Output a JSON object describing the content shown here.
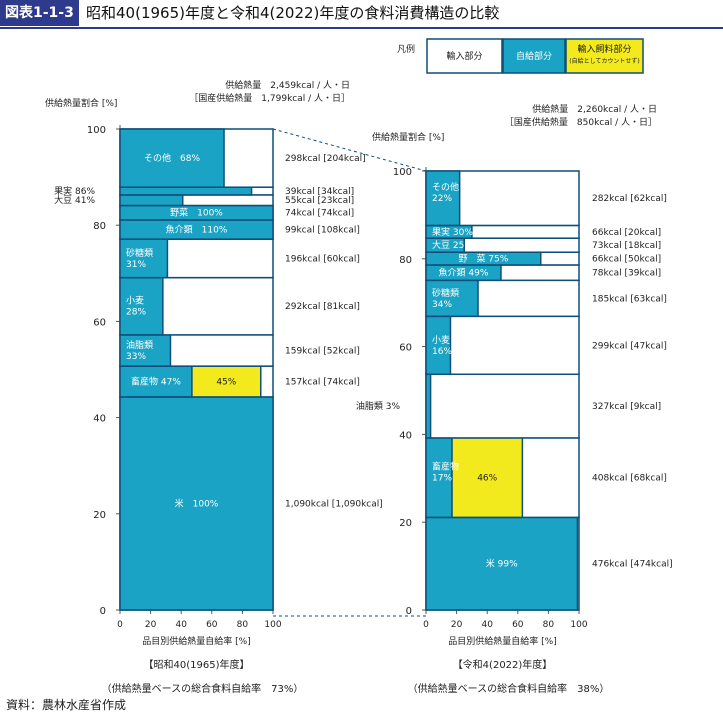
{
  "figure_label": "図表1-1-3",
  "figure_title": "昭和40(1965)年度と令和4(2022)年度の食料消費構造の比較",
  "legend": {
    "title": "凡例",
    "items": [
      {
        "label": "輸入部分",
        "color": "#ffffff"
      },
      {
        "label": "自給部分",
        "color": "#1aa3c4"
      },
      {
        "label": "輸入飼料部分",
        "sub": "(自給としてカウントせず)",
        "color": "#f3ea1d"
      }
    ]
  },
  "colors": {
    "self": "#1aa3c4",
    "import": "#ffffff",
    "feed": "#f3ea1d",
    "border": "#0d4f79"
  },
  "source": "資料：農林水産省作成",
  "chart_data": [
    {
      "type": "bar",
      "id": "1965",
      "supply_line1": "供給熱量　2,459kcal / 人・日",
      "supply_line2": "［国産供給熱量　1,799kcal / 人・日］",
      "ylabel": "供給熱量割合 [%]",
      "xlabel": "品目別供給熱量自給率 [%]",
      "xlim": [
        0,
        100
      ],
      "ylim": [
        0,
        100
      ],
      "xticks": [
        "0",
        "20",
        "40",
        "60",
        "80",
        "100"
      ],
      "yticks": [
        "0",
        "20",
        "40",
        "60",
        "80",
        "100"
      ],
      "caption": "【昭和40(1965)年度】",
      "ratio": "（供給熱量ベースの総合食料自給率　73%）",
      "segments": [
        {
          "name": "米",
          "label": "米　100%",
          "share": 44.3,
          "self": 100,
          "feed": 0,
          "kcal": "1,090kcal [1,090kcal]"
        },
        {
          "name": "畜産物",
          "label": "畜産物 47%",
          "share": 6.4,
          "self": 47,
          "feed": 45,
          "feed_label": "45%",
          "kcal": "157kcal [74kcal]"
        },
        {
          "name": "油脂類",
          "label": "油脂類\n33%",
          "share": 6.5,
          "self": 33,
          "feed": 0,
          "kcal": "159kcal [52kcal]"
        },
        {
          "name": "小麦",
          "label": "小麦\n28%",
          "share": 11.9,
          "self": 28,
          "feed": 0,
          "kcal": "292kcal [81kcal]"
        },
        {
          "name": "砂糖類",
          "label": "砂糖類\n31%",
          "share": 8.0,
          "self": 31,
          "feed": 0,
          "kcal": "196kcal [60kcal]"
        },
        {
          "name": "魚介類",
          "label": "魚介類　110%",
          "share": 4.0,
          "self": 100,
          "feed": 0,
          "kcal": "99kcal [108kcal]"
        },
        {
          "name": "野菜",
          "label": "野菜　100%",
          "share": 3.0,
          "self": 100,
          "feed": 0,
          "kcal": "74kcal [74kcal]"
        },
        {
          "name": "大豆",
          "label": "大豆 41%",
          "share": 2.2,
          "self": 41,
          "feed": 0,
          "kcal": "55kcal [23kcal]",
          "outside": true
        },
        {
          "name": "果実",
          "label": "果実 86%",
          "share": 1.6,
          "self": 86,
          "feed": 0,
          "kcal": "39kcal [34kcal]",
          "outside": true
        },
        {
          "name": "その他",
          "label": "その他　68%",
          "share": 12.1,
          "self": 68,
          "feed": 0,
          "kcal": "298kcal [204kcal]"
        }
      ]
    },
    {
      "type": "bar",
      "id": "2022",
      "supply_line1": "供給熱量　2,260kcal / 人・日",
      "supply_line2": "［国産供給熱量　850kcal / 人・日］",
      "ylabel": "供給熱量割合 [%]",
      "xlabel": "品目別供給熱量自給率 [%]",
      "xlim": [
        0,
        100
      ],
      "ylim": [
        0,
        100
      ],
      "xticks": [
        "0",
        "20",
        "40",
        "60",
        "80",
        "100"
      ],
      "yticks": [
        "0",
        "20",
        "40",
        "60",
        "80",
        "100"
      ],
      "caption": "【令和4(2022)年度】",
      "ratio": "（供給熱量ベースの総合食料自給率　38%）",
      "segments": [
        {
          "name": "米",
          "label": "米 99%",
          "share": 21.1,
          "self": 99,
          "feed": 0,
          "kcal": "476kcal [474kcal]"
        },
        {
          "name": "畜産物",
          "label": "畜産物\n\n17%",
          "share": 18.1,
          "self": 17,
          "feed": 46,
          "feed_label": "46%",
          "kcal": "408kcal [68kcal]"
        },
        {
          "name": "油脂類",
          "label": "油脂類 3%",
          "share": 14.5,
          "self": 3,
          "feed": 0,
          "kcal": "327kcal [9kcal]",
          "outside": true
        },
        {
          "name": "小麦",
          "label": "小麦\n16%",
          "share": 13.2,
          "self": 16,
          "feed": 0,
          "kcal": "299kcal [47kcal]"
        },
        {
          "name": "砂糖類",
          "label": "砂糖類\n34%",
          "share": 8.2,
          "self": 34,
          "feed": 0,
          "kcal": "185kcal [63kcal]"
        },
        {
          "name": "魚介類",
          "label": "魚介類 49%",
          "share": 3.5,
          "self": 49,
          "feed": 0,
          "kcal": "78kcal [39kcal]"
        },
        {
          "name": "野菜",
          "label": "野　菜 75%",
          "share": 2.9,
          "self": 75,
          "feed": 0,
          "kcal": "66kcal [50kcal]"
        },
        {
          "name": "大豆",
          "label": "大豆 25%",
          "share": 3.2,
          "self": 25,
          "feed": 0,
          "kcal": "73kcal [18kcal]"
        },
        {
          "name": "果実",
          "label": "果実 30%",
          "share": 2.9,
          "self": 30,
          "feed": 0,
          "kcal": "66kcal [20kcal]"
        },
        {
          "name": "その他",
          "label": "その他\n\n22%",
          "share": 12.4,
          "self": 22,
          "feed": 0,
          "kcal": "282kcal [62kcal]"
        }
      ]
    }
  ]
}
